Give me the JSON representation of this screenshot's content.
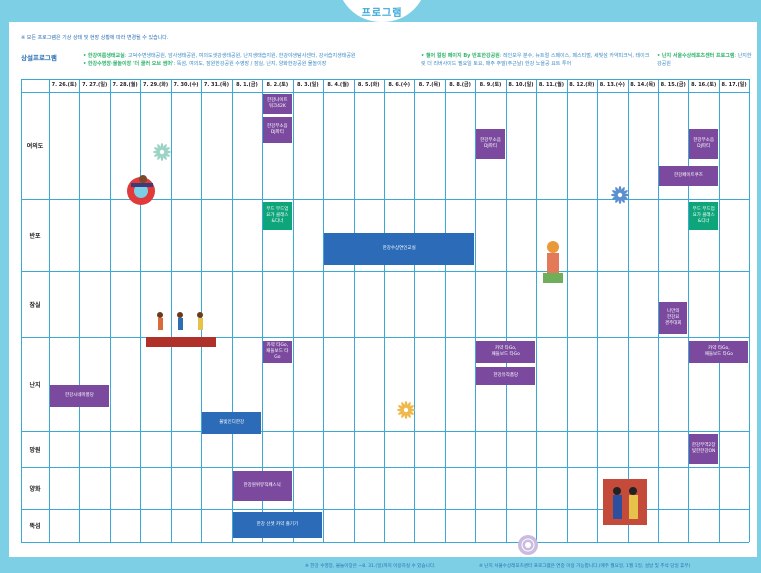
{
  "header": {
    "title": "프로그램"
  },
  "notice": "※ 모든 프로그램은 기상 상태 및 현장 상황에 따라 변경될 수 있습니다.",
  "legend": {
    "section_title": "상설프로그램",
    "col1": [
      {
        "name": "• 한강여름생태교실",
        "desc": ": 고덕수변생태공원, 암사생태공원, 여의도샛강생태공원, 난지생태습지원, 한강야생탐사센터, 강서습지생태공원"
      },
      {
        "name": "• 한강수영장·물놀이장 '더 쿨러 오브 썸머'",
        "desc": ": 뚝섬, 여의도, 잠원한강공원 수영장 / 잠실, 난지, 양화한강공원 물놀이장"
      }
    ],
    "col2": [
      {
        "name": "• 챌어 컬링 페이지 By 반포한강공원",
        "desc": ": 레인보우 분수, 뉴트럴 스페이스, 페스티벌, 세빛섬 카약피크닉, 테이크릿 더 리버사이드 필요일 토요, 매주 주말(주근날) 한강 노을공 요트 투어"
      }
    ],
    "col3": [
      {
        "name": "• 난지 서울수상레포츠센터 프로그램",
        "desc": ": 난지한강공원"
      }
    ]
  },
  "dates": [
    "7. 26.(토)",
    "7. 27.(일)",
    "7. 28.(월)",
    "7. 29.(화)",
    "7. 30.(수)",
    "7. 31.(목)",
    "8. 1.(금)",
    "8. 2.(토)",
    "8. 3.(일)",
    "8. 4.(월)",
    "8. 5.(화)",
    "8. 6.(수)",
    "8. 7.(목)",
    "8. 8.(금)",
    "8. 9.(토)",
    "8. 10.(일)",
    "8. 11.(월)",
    "8. 12.(화)",
    "8. 13.(수)",
    "8. 14.(목)",
    "8. 15.(금)",
    "8. 16.(토)",
    "8. 17.(일)"
  ],
  "rows": [
    "여의도",
    "반포",
    "잠실",
    "난지",
    "망원",
    "양화",
    "뚝섬"
  ],
  "events": {
    "e1": "한강나이트\n워크42K",
    "e2": "한강무소음\nDJ파티",
    "e3": "한강무소음\nDJ파티",
    "e4": "한강무소음\nDJ파티",
    "e5": "한강페이트쿠즈",
    "e6": "무드 무드업\n요가 클래스\n&디너",
    "e7": "무드 무드업\n요가 클래스\n&디너",
    "e8": "한강수상연인교실",
    "e9": "나만의\n한강요\n경주대회",
    "e10": "카약 타Go,\n패들보드 타Go",
    "e11": "카약 타Go,\n패들보드 타Go",
    "e12": "카약 타Go,\n패들보드 타Go",
    "e13": "한강유작품당",
    "e14": "한강시네마풍당",
    "e15": "불빛인디한강",
    "e16": "한강무역2장\n빛한한강ON",
    "e17": "한강원위뮤직페스닉",
    "e18": "한강 선셋 카약 즐기기"
  },
  "footer": {
    "left": "※ 한강 수영장, 물놀이장은 ~8. 31.(일)까지 이용하실 수 있습니다.",
    "right": "※ 난지 서울수상레포츠센터 프로그램은 연중 이용 가능합니다.(매주 월요일, 1월 1일, 설날 및 추석 당일 휴무)"
  },
  "colors": {
    "background": "#7dcfe6",
    "purple": "#7b4a9e",
    "blue": "#2c6bb8",
    "green": "#0ea57a",
    "line": "#3aa9d6"
  }
}
